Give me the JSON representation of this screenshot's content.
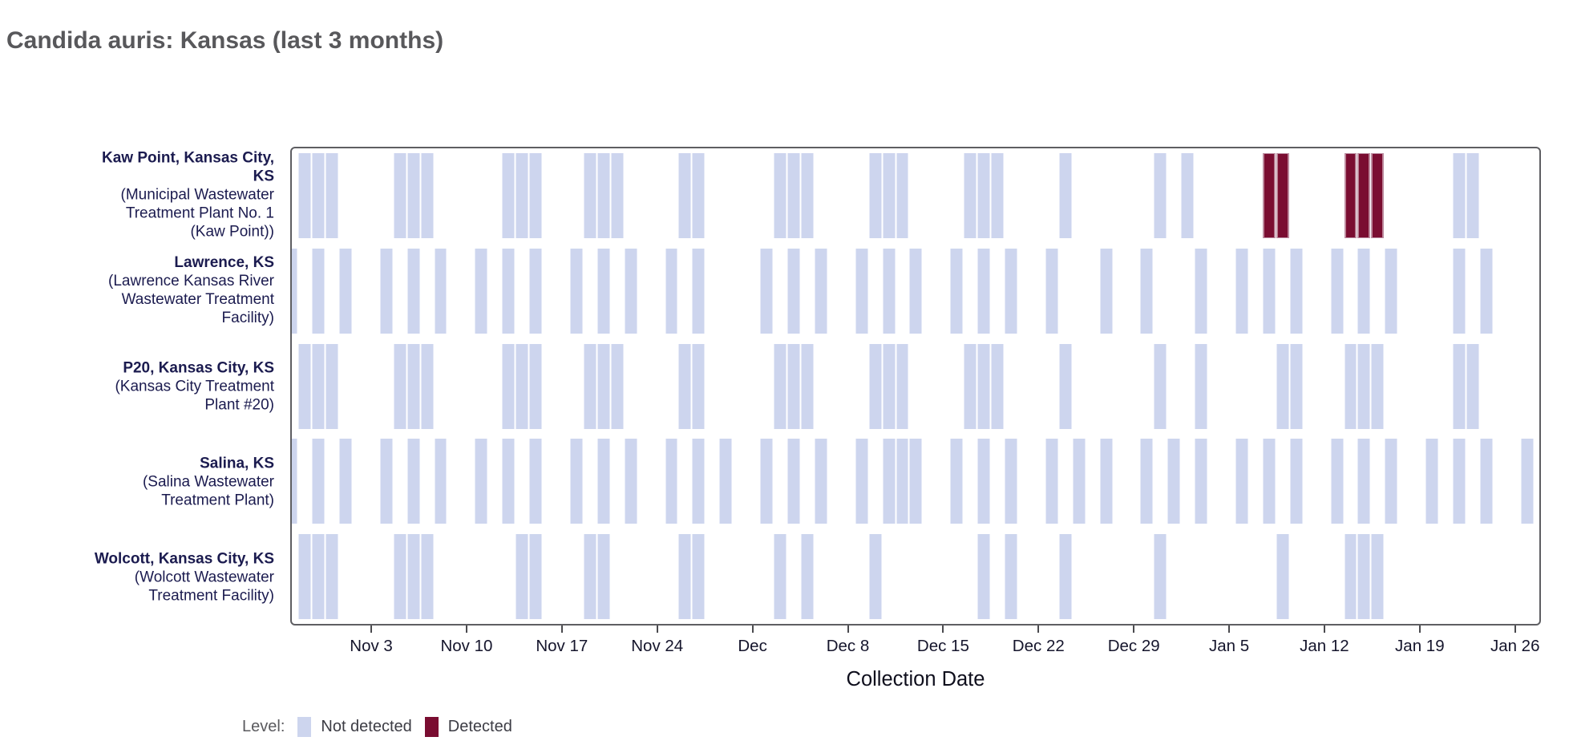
{
  "header": {
    "title": "Candida auris: Kansas (last 3 months)"
  },
  "chart_data": {
    "type": "heatmap",
    "title": "Candida auris: Kansas (last 3 months)",
    "x_axis": {
      "label": "Collection Date",
      "ticks": [
        {
          "label": "Nov 3",
          "date": "Nov 3"
        },
        {
          "label": "Nov 10",
          "date": "Nov 10"
        },
        {
          "label": "Nov 17",
          "date": "Nov 17"
        },
        {
          "label": "Nov 24",
          "date": "Nov 24"
        },
        {
          "label": "Dec",
          "date": "Dec 1"
        },
        {
          "label": "Dec 8",
          "date": "Dec 8"
        },
        {
          "label": "Dec 15",
          "date": "Dec 15"
        },
        {
          "label": "Dec 22",
          "date": "Dec 22"
        },
        {
          "label": "Dec 29",
          "date": "Dec 29"
        },
        {
          "label": "Jan 5",
          "date": "Jan 5"
        },
        {
          "label": "Jan 12",
          "date": "Jan 12"
        },
        {
          "label": "Jan 19",
          "date": "Jan 19"
        },
        {
          "label": "Jan 26",
          "date": "Jan 26"
        }
      ]
    },
    "legend_label": "Level:",
    "levels": [
      {
        "name": "Not detected",
        "color": "#cdd5ee"
      },
      {
        "name": "Detected",
        "color": "#7a0d31"
      }
    ],
    "sites": [
      {
        "name": "Kaw Point, Kansas City,\nKS",
        "facility": "(Municipal Wastewater\nTreatment Plant No. 1\n(Kaw Point))",
        "not_detected": [
          "Oct 29",
          "Oct 30",
          "Oct 31",
          "Nov 5",
          "Nov 6",
          "Nov 7",
          "Nov 13",
          "Nov 14",
          "Nov 15",
          "Nov 19",
          "Nov 20",
          "Nov 21",
          "Nov 26",
          "Nov 27",
          "Dec 3",
          "Dec 4",
          "Dec 5",
          "Dec 10",
          "Dec 11",
          "Dec 12",
          "Dec 17",
          "Dec 18",
          "Dec 19",
          "Dec 24",
          "Dec 31",
          "Jan 2",
          "Jan 22",
          "Jan 23"
        ],
        "detected": [
          "Jan 8",
          "Jan 9",
          "Jan 14",
          "Jan 15",
          "Jan 16"
        ]
      },
      {
        "name": "Lawrence, KS",
        "facility": "(Lawrence Kansas River\nWastewater Treatment\nFacility)",
        "not_detected": [
          "Oct 28",
          "Oct 30",
          "Nov 1",
          "Nov 4",
          "Nov 6",
          "Nov 8",
          "Nov 11",
          "Nov 13",
          "Nov 15",
          "Nov 18",
          "Nov 20",
          "Nov 22",
          "Nov 25",
          "Nov 27",
          "Dec 2",
          "Dec 4",
          "Dec 6",
          "Dec 9",
          "Dec 11",
          "Dec 13",
          "Dec 16",
          "Dec 18",
          "Dec 20",
          "Dec 23",
          "Dec 27",
          "Dec 30",
          "Jan 3",
          "Jan 6",
          "Jan 8",
          "Jan 10",
          "Jan 13",
          "Jan 15",
          "Jan 17",
          "Jan 22",
          "Jan 24"
        ],
        "detected": []
      },
      {
        "name": "P20, Kansas City, KS",
        "facility": "(Kansas City Treatment\nPlant #20)",
        "not_detected": [
          "Oct 29",
          "Oct 30",
          "Oct 31",
          "Nov 5",
          "Nov 6",
          "Nov 7",
          "Nov 13",
          "Nov 14",
          "Nov 15",
          "Nov 19",
          "Nov 20",
          "Nov 21",
          "Nov 26",
          "Nov 27",
          "Dec 3",
          "Dec 4",
          "Dec 5",
          "Dec 10",
          "Dec 11",
          "Dec 12",
          "Dec 17",
          "Dec 18",
          "Dec 19",
          "Dec 24",
          "Dec 31",
          "Jan 3",
          "Jan 9",
          "Jan 10",
          "Jan 14",
          "Jan 15",
          "Jan 16",
          "Jan 22",
          "Jan 23"
        ],
        "detected": []
      },
      {
        "name": "Salina, KS",
        "facility": "(Salina Wastewater\nTreatment Plant)",
        "not_detected": [
          "Oct 28",
          "Oct 30",
          "Nov 1",
          "Nov 4",
          "Nov 6",
          "Nov 8",
          "Nov 11",
          "Nov 13",
          "Nov 15",
          "Nov 18",
          "Nov 20",
          "Nov 22",
          "Nov 25",
          "Nov 27",
          "Nov 29",
          "Dec 2",
          "Dec 4",
          "Dec 6",
          "Dec 9",
          "Dec 11",
          "Dec 12",
          "Dec 13",
          "Dec 16",
          "Dec 18",
          "Dec 20",
          "Dec 23",
          "Dec 25",
          "Dec 27",
          "Dec 30",
          "Jan 1",
          "Jan 3",
          "Jan 6",
          "Jan 8",
          "Jan 10",
          "Jan 13",
          "Jan 15",
          "Jan 17",
          "Jan 20",
          "Jan 22",
          "Jan 24",
          "Jan 27"
        ],
        "detected": []
      },
      {
        "name": "Wolcott, Kansas City, KS",
        "facility": "(Wolcott Wastewater\nTreatment Facility)",
        "not_detected": [
          "Oct 29",
          "Oct 30",
          "Oct 31",
          "Nov 5",
          "Nov 6",
          "Nov 7",
          "Nov 14",
          "Nov 15",
          "Nov 19",
          "Nov 20",
          "Nov 26",
          "Nov 27",
          "Dec 3",
          "Dec 5",
          "Dec 10",
          "Dec 18",
          "Dec 20",
          "Dec 24",
          "Dec 31",
          "Jan 9",
          "Jan 14",
          "Jan 15",
          "Jan 16"
        ],
        "detected": []
      }
    ]
  }
}
